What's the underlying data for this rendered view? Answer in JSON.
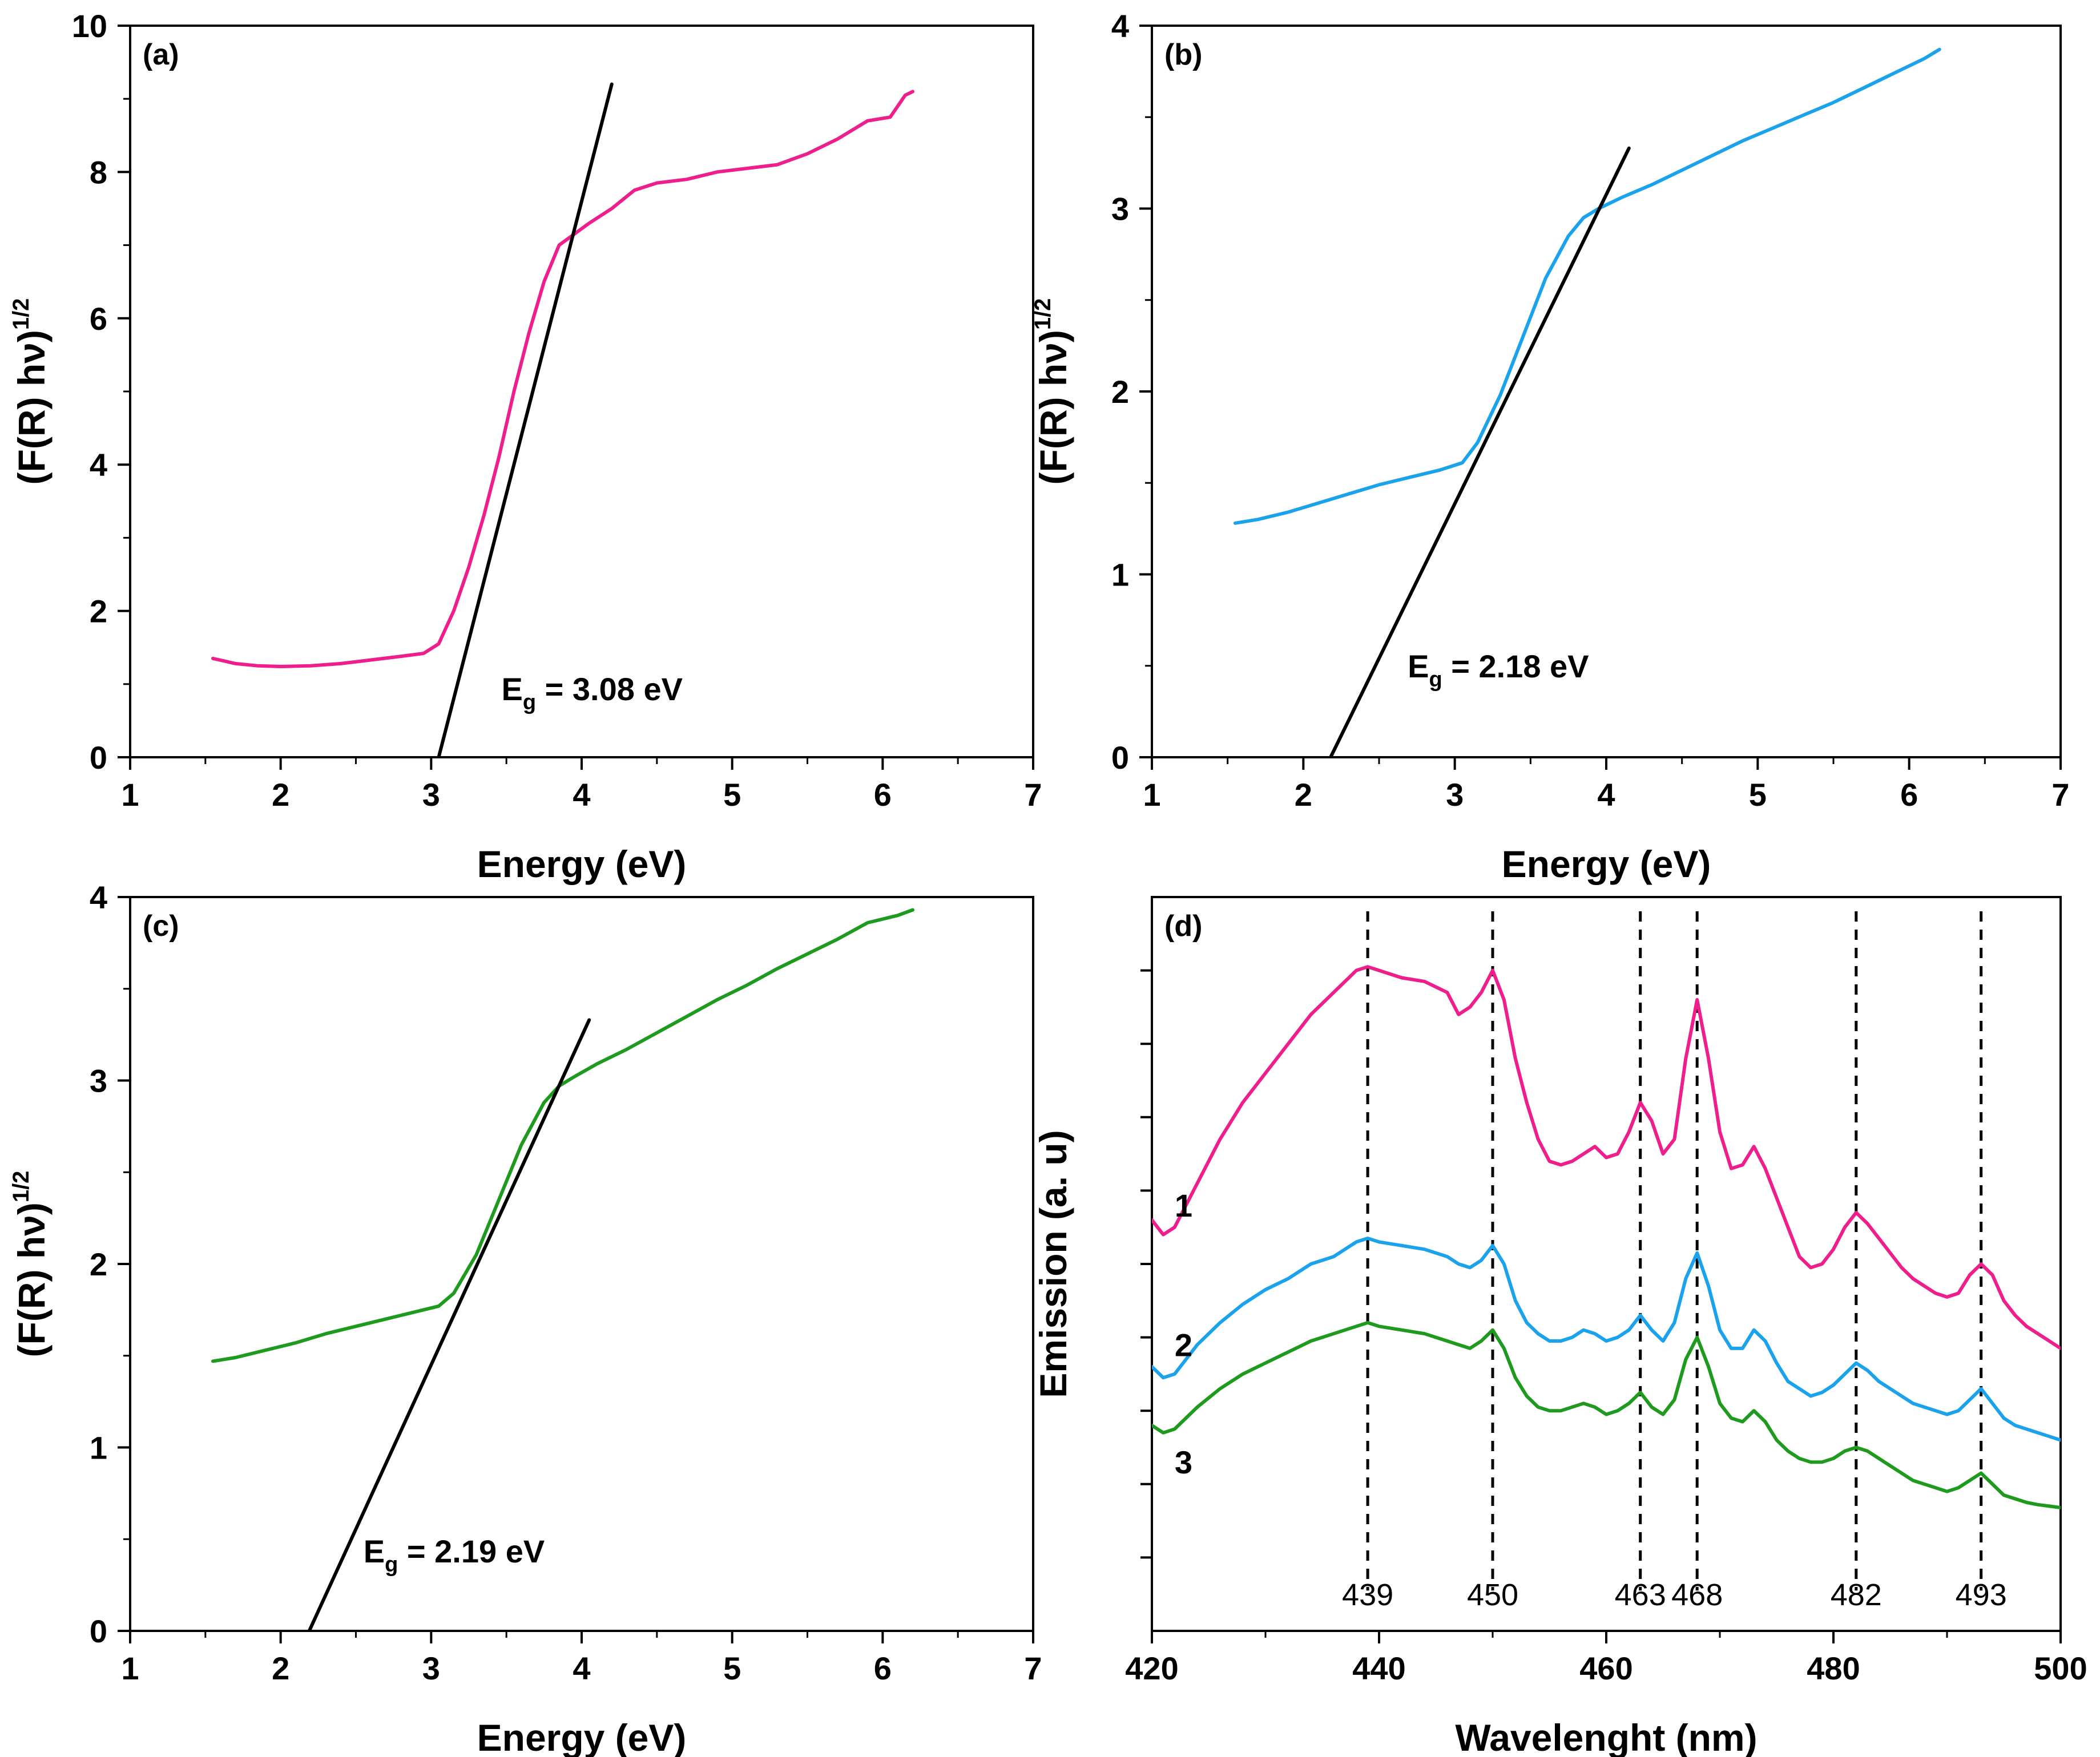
{
  "chart_data": [
    {
      "panel": "(a)",
      "type": "line",
      "xlabel": "Energy (eV)",
      "ylabel_main": "(F(R) hν)",
      "ylabel_sup": "1/2",
      "xlim": [
        1,
        7
      ],
      "ylim": [
        0,
        10
      ],
      "xticks": [
        1,
        2,
        3,
        4,
        5,
        6,
        7
      ],
      "yticks": [
        0,
        2,
        4,
        6,
        8,
        10
      ],
      "series": [
        {
          "name": "spectrum",
          "color": "#ee1f8c",
          "x": [
            1.55,
            1.7,
            1.85,
            2.0,
            2.2,
            2.4,
            2.6,
            2.8,
            2.95,
            3.05,
            3.15,
            3.25,
            3.35,
            3.45,
            3.55,
            3.65,
            3.75,
            3.85,
            3.95,
            4.05,
            4.2,
            4.35,
            4.5,
            4.7,
            4.9,
            5.1,
            5.3,
            5.5,
            5.7,
            5.9,
            6.05,
            6.15,
            6.2
          ],
          "y": [
            1.35,
            1.28,
            1.25,
            1.24,
            1.25,
            1.28,
            1.33,
            1.38,
            1.42,
            1.55,
            2.0,
            2.6,
            3.3,
            4.1,
            5.0,
            5.8,
            6.5,
            7.0,
            7.15,
            7.3,
            7.5,
            7.75,
            7.85,
            7.9,
            8.0,
            8.05,
            8.1,
            8.25,
            8.45,
            8.7,
            8.75,
            9.05,
            9.1
          ]
        }
      ],
      "fit_line": {
        "x": [
          3.05,
          4.2
        ],
        "y": [
          0,
          9.2
        ],
        "color": "#000000"
      },
      "annotation": {
        "prefix": "E",
        "sub": "g",
        "suffix": " = 3.08 eV"
      }
    },
    {
      "panel": "(b)",
      "type": "line",
      "xlabel": "Energy (eV)",
      "ylabel_main": "(F(R) hν)",
      "ylabel_sup": "1/2",
      "xlim": [
        1,
        7
      ],
      "ylim": [
        0,
        4
      ],
      "xticks": [
        1,
        2,
        3,
        4,
        5,
        6,
        7
      ],
      "yticks": [
        0,
        1,
        2,
        3,
        4
      ],
      "series": [
        {
          "name": "spectrum",
          "color": "#1aa3ec",
          "x": [
            1.55,
            1.7,
            1.9,
            2.1,
            2.3,
            2.5,
            2.7,
            2.9,
            3.05,
            3.15,
            3.3,
            3.45,
            3.6,
            3.75,
            3.85,
            3.95,
            4.1,
            4.3,
            4.5,
            4.7,
            4.9,
            5.1,
            5.3,
            5.5,
            5.7,
            5.9,
            6.1,
            6.2
          ],
          "y": [
            1.28,
            1.3,
            1.34,
            1.39,
            1.44,
            1.49,
            1.53,
            1.57,
            1.61,
            1.72,
            1.98,
            2.3,
            2.62,
            2.85,
            2.95,
            3.0,
            3.06,
            3.13,
            3.21,
            3.29,
            3.37,
            3.44,
            3.51,
            3.58,
            3.66,
            3.74,
            3.82,
            3.87
          ]
        }
      ],
      "fit_line": {
        "x": [
          2.18,
          4.15
        ],
        "y": [
          0,
          3.33
        ],
        "color": "#000000"
      },
      "annotation": {
        "prefix": "E",
        "sub": "g",
        "suffix": " = 2.18 eV"
      }
    },
    {
      "panel": "(c)",
      "type": "line",
      "xlabel": "Energy (eV)",
      "ylabel_main": "(F(R) hν)",
      "ylabel_sup": "1/2",
      "xlim": [
        1,
        7
      ],
      "ylim": [
        0,
        4
      ],
      "xticks": [
        1,
        2,
        3,
        4,
        5,
        6,
        7
      ],
      "yticks": [
        0,
        1,
        2,
        3,
        4
      ],
      "series": [
        {
          "name": "spectrum",
          "color": "#1e9a1e",
          "x": [
            1.55,
            1.7,
            1.9,
            2.1,
            2.3,
            2.5,
            2.7,
            2.9,
            3.05,
            3.15,
            3.3,
            3.45,
            3.6,
            3.75,
            3.85,
            3.95,
            4.1,
            4.3,
            4.5,
            4.7,
            4.9,
            5.1,
            5.3,
            5.5,
            5.7,
            5.9,
            6.1,
            6.2
          ],
          "y": [
            1.47,
            1.49,
            1.53,
            1.57,
            1.62,
            1.66,
            1.7,
            1.74,
            1.77,
            1.84,
            2.05,
            2.35,
            2.65,
            2.88,
            2.97,
            3.02,
            3.09,
            3.17,
            3.26,
            3.35,
            3.44,
            3.52,
            3.61,
            3.69,
            3.77,
            3.86,
            3.9,
            3.93
          ]
        }
      ],
      "fit_line": {
        "x": [
          2.19,
          4.05
        ],
        "y": [
          0,
          3.33
        ],
        "color": "#000000"
      },
      "annotation": {
        "prefix": "E",
        "sub": "g",
        "suffix": " = 2.19 eV"
      }
    },
    {
      "panel": "(d)",
      "type": "line",
      "xlabel": "Wavelenght (nm)",
      "ylabel": "Emission (a. u)",
      "xlim": [
        420,
        500
      ],
      "ylim": [
        0,
        10
      ],
      "xticks": [
        420,
        440,
        460,
        480,
        500
      ],
      "yticks_unlabeled": [
        1,
        2,
        3,
        4,
        5,
        6,
        7,
        8,
        9
      ],
      "peaks": [
        439,
        450,
        463,
        468,
        482,
        493
      ],
      "series": [
        {
          "name": "1",
          "color": "#ee1f8c",
          "x": [
            420,
            421,
            422,
            424,
            426,
            428,
            430,
            432,
            434,
            436,
            438,
            439,
            440,
            442,
            444,
            446,
            447,
            448,
            449,
            450,
            451,
            452,
            453,
            454,
            455,
            456,
            457,
            458,
            459,
            460,
            461,
            462,
            463,
            464,
            465,
            466,
            467,
            468,
            469,
            470,
            471,
            472,
            473,
            474,
            475,
            476,
            477,
            478,
            479,
            480,
            481,
            482,
            483,
            484,
            485,
            486,
            487,
            488,
            489,
            490,
            491,
            492,
            493,
            494,
            495,
            496,
            497,
            498,
            499,
            500
          ],
          "y": [
            5.6,
            5.4,
            5.5,
            6.1,
            6.7,
            7.2,
            7.6,
            8.0,
            8.4,
            8.7,
            9.0,
            9.05,
            9.0,
            8.9,
            8.85,
            8.7,
            8.4,
            8.5,
            8.7,
            9.0,
            8.6,
            7.8,
            7.2,
            6.7,
            6.4,
            6.35,
            6.4,
            6.5,
            6.6,
            6.45,
            6.5,
            6.8,
            7.2,
            6.95,
            6.5,
            6.7,
            7.8,
            8.6,
            7.8,
            6.8,
            6.3,
            6.35,
            6.6,
            6.3,
            5.9,
            5.5,
            5.1,
            4.95,
            5.0,
            5.2,
            5.5,
            5.7,
            5.55,
            5.35,
            5.15,
            4.95,
            4.8,
            4.7,
            4.6,
            4.55,
            4.6,
            4.85,
            5.0,
            4.85,
            4.5,
            4.3,
            4.15,
            4.05,
            3.95,
            3.85
          ]
        },
        {
          "name": "2",
          "color": "#1aa3ec",
          "x": [
            420,
            421,
            422,
            424,
            426,
            428,
            430,
            432,
            434,
            436,
            438,
            439,
            440,
            442,
            444,
            446,
            447,
            448,
            449,
            450,
            451,
            452,
            453,
            454,
            455,
            456,
            457,
            458,
            459,
            460,
            461,
            462,
            463,
            464,
            465,
            466,
            467,
            468,
            469,
            470,
            471,
            472,
            473,
            474,
            475,
            476,
            477,
            478,
            479,
            480,
            481,
            482,
            483,
            484,
            485,
            486,
            487,
            488,
            489,
            490,
            491,
            492,
            493,
            494,
            495,
            496,
            497,
            498,
            499,
            500
          ],
          "y": [
            3.6,
            3.45,
            3.5,
            3.9,
            4.2,
            4.45,
            4.65,
            4.8,
            5.0,
            5.1,
            5.3,
            5.35,
            5.3,
            5.25,
            5.2,
            5.1,
            5.0,
            4.95,
            5.05,
            5.25,
            5.0,
            4.5,
            4.2,
            4.05,
            3.95,
            3.95,
            4.0,
            4.1,
            4.05,
            3.95,
            4.0,
            4.1,
            4.3,
            4.1,
            3.95,
            4.2,
            4.8,
            5.15,
            4.7,
            4.1,
            3.85,
            3.85,
            4.1,
            3.95,
            3.65,
            3.4,
            3.3,
            3.2,
            3.25,
            3.35,
            3.5,
            3.65,
            3.55,
            3.4,
            3.3,
            3.2,
            3.1,
            3.05,
            3.0,
            2.95,
            3.0,
            3.15,
            3.3,
            3.1,
            2.9,
            2.8,
            2.75,
            2.7,
            2.65,
            2.6
          ]
        },
        {
          "name": "3",
          "color": "#1e9a1e",
          "x": [
            420,
            421,
            422,
            424,
            426,
            428,
            430,
            432,
            434,
            436,
            438,
            439,
            440,
            442,
            444,
            446,
            447,
            448,
            449,
            450,
            451,
            452,
            453,
            454,
            455,
            456,
            457,
            458,
            459,
            460,
            461,
            462,
            463,
            464,
            465,
            466,
            467,
            468,
            469,
            470,
            471,
            472,
            473,
            474,
            475,
            476,
            477,
            478,
            479,
            480,
            481,
            482,
            483,
            484,
            485,
            486,
            487,
            488,
            489,
            490,
            491,
            492,
            493,
            494,
            495,
            496,
            497,
            498,
            499,
            500
          ],
          "y": [
            2.8,
            2.7,
            2.75,
            3.05,
            3.3,
            3.5,
            3.65,
            3.8,
            3.95,
            4.05,
            4.15,
            4.2,
            4.15,
            4.1,
            4.05,
            3.95,
            3.9,
            3.85,
            3.95,
            4.1,
            3.85,
            3.45,
            3.2,
            3.05,
            3.0,
            3.0,
            3.05,
            3.1,
            3.05,
            2.95,
            3.0,
            3.1,
            3.25,
            3.05,
            2.95,
            3.15,
            3.7,
            4.0,
            3.6,
            3.1,
            2.9,
            2.85,
            3.0,
            2.85,
            2.6,
            2.45,
            2.35,
            2.3,
            2.3,
            2.35,
            2.45,
            2.5,
            2.45,
            2.35,
            2.25,
            2.15,
            2.05,
            2.0,
            1.95,
            1.9,
            1.95,
            2.05,
            2.15,
            2.0,
            1.85,
            1.8,
            1.75,
            1.72,
            1.7,
            1.68
          ]
        }
      ],
      "series_label_positions": [
        {
          "label": "1",
          "x": 421.5,
          "y": 5.8
        },
        {
          "label": "2",
          "x": 421.5,
          "y": 3.9
        },
        {
          "label": "3",
          "x": 421.5,
          "y": 2.3
        }
      ]
    }
  ]
}
